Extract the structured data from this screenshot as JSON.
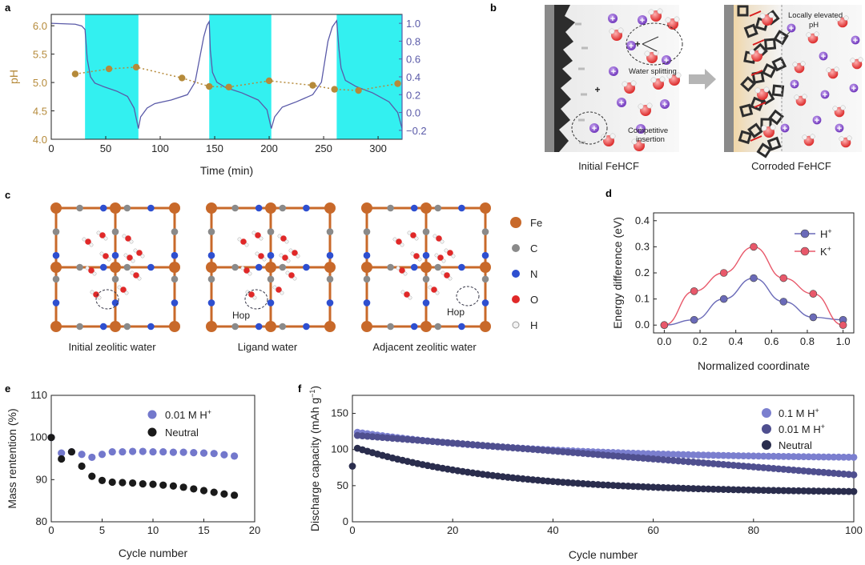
{
  "panels": {
    "a": {
      "label": "a",
      "chart_data": {
        "type": "line+scatter",
        "xlabel": "Time (min)",
        "ylabel_left": "pH",
        "ylabel_right": "Potential (V vs. Ag/AgCl)",
        "xlim": [
          0,
          322
        ],
        "ylim_left": [
          4.0,
          6.2
        ],
        "ylim_right": [
          -0.3,
          1.1
        ],
        "xticks": [
          0,
          50,
          100,
          150,
          200,
          250,
          300
        ],
        "yticks_left": [
          4.0,
          4.5,
          5.0,
          5.5,
          6.0
        ],
        "yticks_right": [
          -0.2,
          0.0,
          0.2,
          0.4,
          0.6,
          0.8,
          1.0
        ],
        "shaded_intervals": [
          [
            31,
            80
          ],
          [
            145,
            202
          ],
          [
            262,
            322
          ]
        ],
        "colors": {
          "ph": "#b58a3a",
          "potential": "#5a5aa8",
          "shade": "#33f0f0"
        },
        "ph_series": {
          "x": [
            22,
            53,
            78,
            120,
            145,
            163,
            200,
            240,
            260,
            282,
            318
          ],
          "y": [
            5.15,
            5.24,
            5.27,
            5.08,
            4.93,
            4.92,
            5.03,
            4.95,
            4.88,
            4.86,
            4.98
          ]
        },
        "potential_series": {
          "x": [
            0,
            22,
            28,
            31,
            33,
            36,
            40,
            48,
            60,
            70,
            76,
            80,
            82,
            88,
            95,
            110,
            125,
            132,
            140,
            143,
            145,
            146,
            148,
            152,
            160,
            175,
            190,
            198,
            202,
            205,
            212,
            225,
            240,
            248,
            254,
            258,
            262,
            264,
            266,
            270,
            280,
            295,
            310,
            318,
            322
          ],
          "y": [
            1.0,
            0.99,
            0.97,
            0.93,
            0.6,
            0.4,
            0.33,
            0.29,
            0.24,
            0.18,
            0.05,
            -0.18,
            -0.05,
            0.05,
            0.1,
            0.14,
            0.2,
            0.34,
            0.85,
            0.98,
            1.02,
            0.7,
            0.45,
            0.34,
            0.28,
            0.22,
            0.14,
            0.03,
            -0.18,
            -0.05,
            0.06,
            0.12,
            0.2,
            0.34,
            0.8,
            0.96,
            1.03,
            0.72,
            0.5,
            0.36,
            0.29,
            0.22,
            0.12,
            0.0,
            -0.18
          ]
        }
      }
    },
    "b": {
      "label": "b",
      "annotations": {
        "water_splitting": "Water splitting",
        "competitive": "Competitive",
        "insertion": "insertion",
        "locally_elevated": "Locally elevated",
        "ph": "pH"
      },
      "plus": "+",
      "captions": {
        "left": "Initial FeHCF",
        "right": "Corroded FeHCF"
      }
    },
    "c": {
      "label": "c",
      "captions": [
        "Initial zeolitic water",
        "Ligand water",
        "Adjacent zeolitic water"
      ],
      "hop": "Hop",
      "legend": [
        {
          "symbol": "Fe",
          "color": "#c8692a"
        },
        {
          "symbol": "C",
          "color": "#8a8a8a"
        },
        {
          "symbol": "N",
          "color": "#2e4fd0"
        },
        {
          "symbol": "O",
          "color": "#e02828"
        },
        {
          "symbol": "H",
          "color": "#f2f2f2"
        }
      ]
    },
    "d": {
      "label": "d",
      "chart_data": {
        "type": "line",
        "xlabel": "Normalized coordinate",
        "ylabel": "Energy difference (eV)",
        "xlim": [
          -0.06,
          1.06
        ],
        "ylim": [
          -0.03,
          0.43
        ],
        "xticks": [
          0.0,
          0.2,
          0.4,
          0.6,
          0.8,
          1.0
        ],
        "yticks": [
          0.0,
          0.1,
          0.2,
          0.3,
          0.4
        ],
        "x": [
          0,
          0.167,
          0.333,
          0.5,
          0.667,
          0.833,
          1.0
        ],
        "series": [
          {
            "name": "H",
            "sup": "+",
            "color": "#6a6ab8",
            "values": [
              0.0,
              0.02,
              0.1,
              0.18,
              0.09,
              0.03,
              0.02
            ]
          },
          {
            "name": "K",
            "sup": "+",
            "color": "#e8586a",
            "values": [
              0.0,
              0.13,
              0.2,
              0.3,
              0.18,
              0.12,
              0.0
            ]
          }
        ],
        "legend_position": "top-right"
      }
    },
    "e": {
      "label": "e",
      "chart_data": {
        "type": "scatter",
        "xlabel": "Cycle number",
        "ylabel": "Mass rentention (%)",
        "xlim": [
          0,
          20
        ],
        "ylim": [
          80,
          110
        ],
        "xticks": [
          0,
          5,
          10,
          15,
          20
        ],
        "yticks": [
          80,
          90,
          100,
          110
        ],
        "x": [
          0,
          1,
          2,
          3,
          4,
          5,
          6,
          7,
          8,
          9,
          10,
          11,
          12,
          13,
          14,
          15,
          16,
          17,
          18
        ],
        "series": [
          {
            "name": "0.01 M H",
            "sup": "+",
            "color": "#7378cc",
            "values": [
              100,
              96.3,
              96.6,
              96.0,
              95.3,
              96.0,
              96.6,
              96.6,
              96.7,
              96.7,
              96.6,
              96.6,
              96.5,
              96.5,
              96.4,
              96.3,
              96.2,
              95.9,
              95.6
            ]
          },
          {
            "name": "Neutral",
            "sup": "",
            "color": "#1a1a1a",
            "values": [
              100,
              94.9,
              96.6,
              93.2,
              90.8,
              89.8,
              89.4,
              89.3,
              89.2,
              89.0,
              88.9,
              88.7,
              88.5,
              88.2,
              87.8,
              87.4,
              87.0,
              86.6,
              86.3
            ]
          }
        ],
        "legend_position": "top-right"
      }
    },
    "f": {
      "label": "f",
      "chart_data": {
        "type": "scatter",
        "xlabel": "Cycle number",
        "ylabel": "Discharge capacity (mAh g",
        "ylabel_sup": "−1",
        "ylabel_end": ")",
        "xlim": [
          0,
          100
        ],
        "ylim": [
          0,
          175
        ],
        "xticks": [
          0,
          20,
          40,
          60,
          80,
          100
        ],
        "yticks": [
          0,
          50,
          100,
          150
        ],
        "series": [
          {
            "name": "0.1 M H",
            "sup": "+",
            "color": "#7b7fcf",
            "start": 125,
            "end": 87,
            "k": 0.028
          },
          {
            "name": "0.01 M H",
            "sup": "+",
            "color": "#4f4f8f",
            "start": 120,
            "end": 65,
            "k": 0.012
          },
          {
            "name": "Neutral",
            "sup": "",
            "color": "#2a2d4d",
            "start": 104,
            "end": 40,
            "k": 0.035,
            "first": 77
          }
        ],
        "legend_position": "top-right"
      }
    }
  }
}
